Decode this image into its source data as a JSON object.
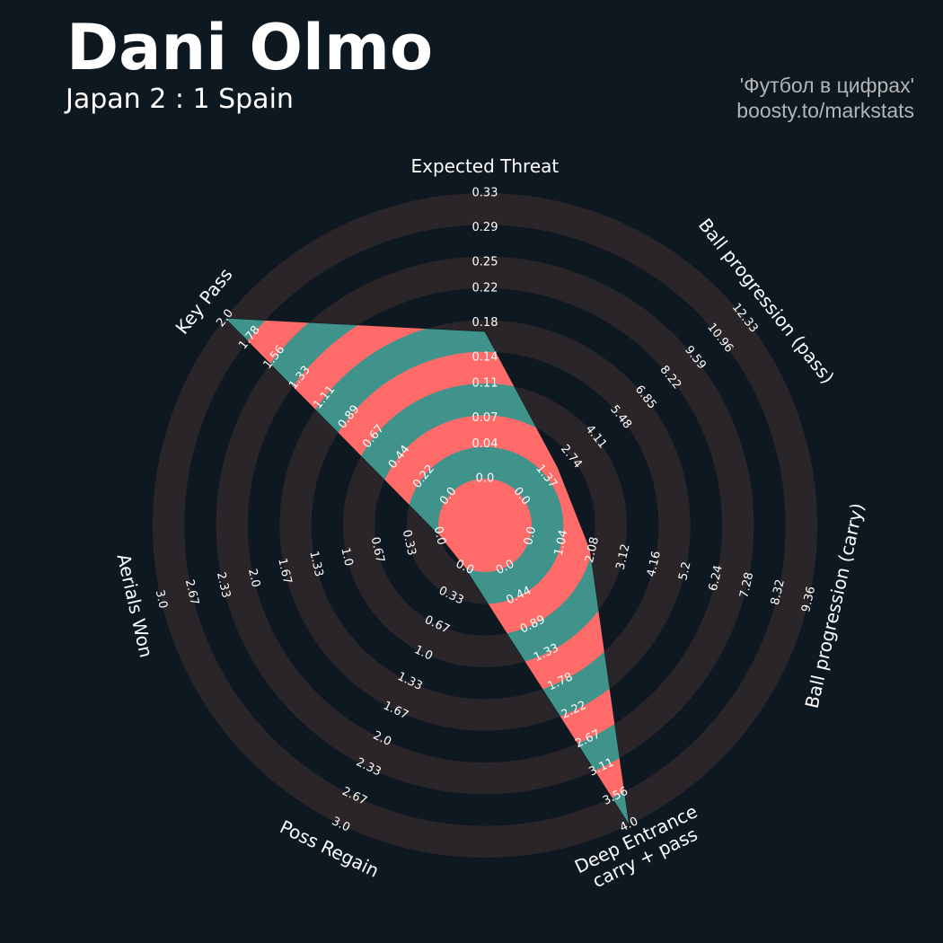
{
  "chart_data": {
    "type": "radar",
    "title": "Dani Olmo",
    "subtitle": "Japan 2 : 1 Spain",
    "credits": [
      "'Футбол в цифрах'",
      "boosty.to/markstats"
    ],
    "params": [
      "Expected Threat",
      "Ball progression (pass)",
      "Ball progression (carry)",
      "Deep Entrance\ncarry + pass",
      "Poss Regain",
      "Aerials Won",
      "Key Pass"
    ],
    "values": [
      0.17,
      2.0,
      2.0,
      4.0,
      0,
      0,
      2.0
    ],
    "lims": [
      [
        0,
        0.33
      ],
      [
        0,
        12.33
      ],
      [
        0,
        9.36
      ],
      [
        0,
        4
      ],
      [
        0,
        3
      ],
      [
        0,
        3
      ],
      [
        0,
        2
      ]
    ],
    "ticks": [
      [
        {
          "value": 0,
          "label": "0.0"
        },
        0.04,
        0.07,
        0.11,
        0.14,
        0.18,
        0.22,
        0.25,
        0.29,
        0.33
      ],
      [
        {
          "value": 0,
          "label": "0.0"
        },
        1.37,
        2.74,
        4.11,
        5.48,
        6.85,
        8.22,
        9.59,
        10.96,
        12.33
      ],
      [
        {
          "value": 0,
          "label": "0.0"
        },
        1.04,
        2.08,
        3.12,
        4.16,
        5.2,
        6.24,
        7.28,
        8.32,
        9.36
      ],
      [
        {
          "value": 0,
          "label": "0.0"
        },
        0.44,
        0.89,
        1.33,
        1.78,
        2.22,
        2.67,
        3.11,
        3.56,
        {
          "value": 4,
          "label": "4.0"
        }
      ],
      [
        {
          "value": 0,
          "label": "0.0"
        },
        0.33,
        0.67,
        {
          "value": 1,
          "label": "1.0"
        },
        1.33,
        1.67,
        {
          "value": 2,
          "label": "2.0"
        },
        2.33,
        2.67,
        {
          "value": 3,
          "label": "3.0"
        }
      ],
      [
        {
          "value": 0,
          "label": "0.0"
        },
        0.33,
        0.67,
        {
          "value": 1,
          "label": "1.0"
        },
        1.33,
        1.67,
        {
          "value": 2,
          "label": "2.0"
        },
        2.33,
        2.67,
        {
          "value": 3,
          "label": "3.0"
        }
      ],
      [
        {
          "value": 0,
          "label": "0.0"
        },
        0.22,
        0.44,
        0.67,
        0.89,
        1.11,
        1.33,
        1.56,
        1.78,
        {
          "value": 2,
          "label": "2.0"
        }
      ]
    ],
    "colors": {
      "background": "#0e1820",
      "rings": "#2a2529",
      "inner": "#fe6b68",
      "outer": "#3f938a"
    }
  }
}
